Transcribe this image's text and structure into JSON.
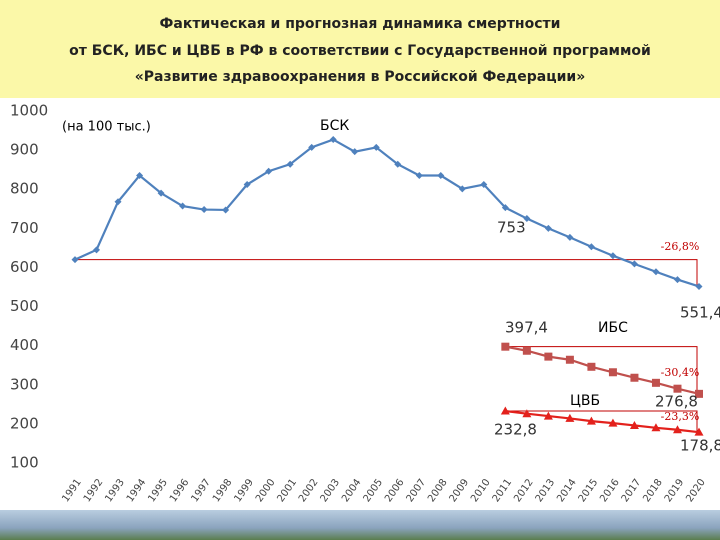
{
  "chart_data": {
    "type": "line",
    "title": [
      "Фактическая и прогнозная динамика смертности",
      "от БСК, ИБС и ЦВБ в РФ в соответствии с Государственной программой",
      "«Развитие здравоохранения в Российской Федерации»"
    ],
    "y_axis_label": "(на 100 тыс.)",
    "categories": [
      "1991",
      "1992",
      "1993",
      "1994",
      "1995",
      "1996",
      "1997",
      "1998",
      "1999",
      "2000",
      "2001",
      "2002",
      "2003",
      "2004",
      "2005",
      "2006",
      "2007",
      "2008",
      "2009",
      "2010",
      "2011",
      "2012",
      "2013",
      "2014",
      "2015",
      "2016",
      "2017",
      "2018",
      "2019",
      "2020"
    ],
    "series": [
      {
        "name": "БСК",
        "color": "#4f81bd",
        "marker": "diamond",
        "values": [
          620,
          645,
          768,
          835,
          790,
          757,
          748,
          747,
          812,
          846,
          864,
          907,
          927,
          896,
          907,
          864,
          835,
          835,
          801,
          812,
          753,
          725,
          700,
          677,
          653,
          630,
          609,
          589,
          569,
          551.4
        ],
        "value_labels": [
          null,
          null,
          null,
          null,
          null,
          null,
          null,
          null,
          null,
          null,
          null,
          null,
          null,
          null,
          null,
          null,
          null,
          null,
          null,
          null,
          "753",
          null,
          null,
          null,
          null,
          null,
          null,
          null,
          null,
          "551,4"
        ]
      },
      {
        "name": "ИБС",
        "color": "#c0504d",
        "marker": "square",
        "values": [
          null,
          null,
          null,
          null,
          null,
          null,
          null,
          null,
          null,
          null,
          null,
          null,
          null,
          null,
          null,
          null,
          null,
          null,
          null,
          null,
          397.4,
          387,
          372,
          364,
          346,
          332,
          318,
          305,
          290,
          276.8
        ],
        "value_labels": [
          null,
          null,
          null,
          null,
          null,
          null,
          null,
          null,
          null,
          null,
          null,
          null,
          null,
          null,
          null,
          null,
          null,
          null,
          null,
          null,
          "397,4",
          null,
          null,
          null,
          null,
          null,
          null,
          null,
          null,
          "276,8"
        ]
      },
      {
        "name": "ЦВБ",
        "color": "#e3211c",
        "marker": "triangle",
        "values": [
          null,
          null,
          null,
          null,
          null,
          null,
          null,
          null,
          null,
          null,
          null,
          null,
          null,
          null,
          null,
          null,
          null,
          null,
          null,
          null,
          232.8,
          226,
          220,
          214,
          207,
          202,
          196,
          190,
          185,
          178.8
        ],
        "value_labels": [
          null,
          null,
          null,
          null,
          null,
          null,
          null,
          null,
          null,
          null,
          null,
          null,
          null,
          null,
          null,
          null,
          null,
          null,
          null,
          null,
          "232,8",
          null,
          null,
          null,
          null,
          null,
          null,
          null,
          null,
          "178,8"
        ]
      }
    ],
    "annotations": [
      "-26,8%",
      "-30,4%",
      "-23,3%"
    ],
    "ylim": [
      100,
      1000
    ],
    "yticks": [
      100,
      200,
      300,
      400,
      500,
      600,
      700,
      800,
      900,
      1000
    ],
    "grid": false
  }
}
